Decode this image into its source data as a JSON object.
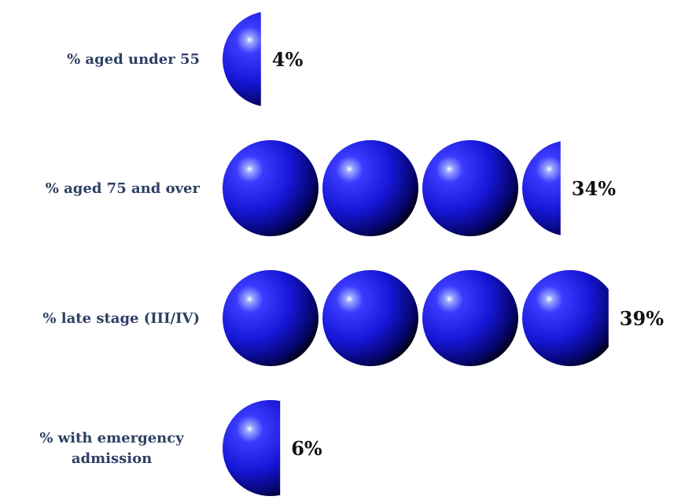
{
  "chart_data": {
    "type": "bar",
    "categories": [
      [
        "% aged under 55"
      ],
      [
        "% aged 75 and over"
      ],
      [
        "% late stage (III/IV)"
      ],
      [
        "% with emergency",
        "admission"
      ]
    ],
    "values": [
      4,
      34,
      39,
      6
    ],
    "value_labels": [
      "4%",
      "34%",
      "39%",
      "6%"
    ],
    "unit_per_sphere": 10,
    "mark": "sphere",
    "colors": {
      "sphere_light": "#5a6cff",
      "sphere_mid": "#1a1ae6",
      "sphere_dark": "#000010",
      "category_text": "#2d3f63",
      "value_text": "#111111"
    }
  }
}
